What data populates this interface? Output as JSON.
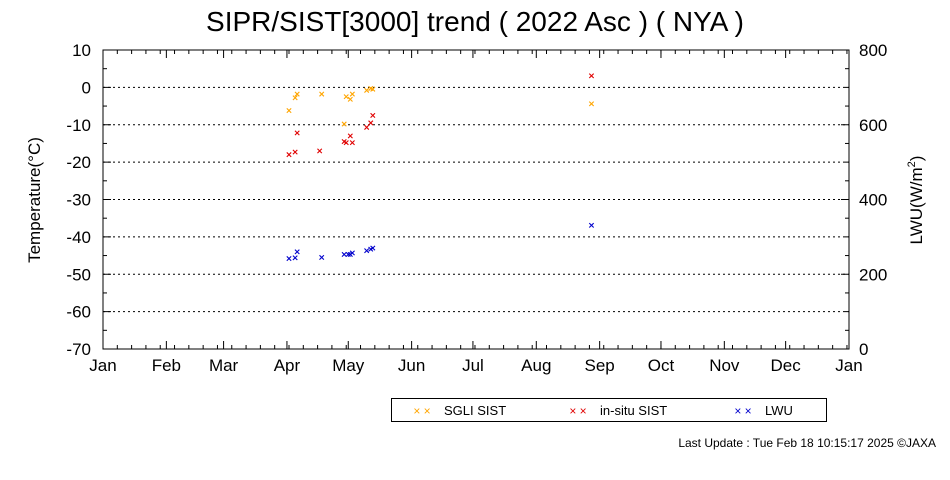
{
  "chart_data": {
    "type": "scatter",
    "title": "SIPR/SIST[3000] trend ( 2022 Asc ) ( NYA )",
    "ylabel": "Temperature(°C)",
    "y2label_main": "LWU(W/m",
    "y2label_sup": "2",
    "y2label_end": ")",
    "ylim": [
      -70,
      10
    ],
    "y2lim": [
      0,
      800
    ],
    "yticks": [
      "10",
      "0",
      "-10",
      "-20",
      "-30",
      "-40",
      "-50",
      "-60",
      "-70"
    ],
    "y2ticks": [
      "800",
      "600",
      "400",
      "200",
      "0"
    ],
    "months": [
      "Jan",
      "Feb",
      "Mar",
      "Apr",
      "May",
      "Jun",
      "Jul",
      "Aug",
      "Sep",
      "Oct",
      "Nov",
      "Dec",
      "Jan"
    ],
    "grid": "dotted horizontal",
    "legend_placement": "bottom-right",
    "series": [
      {
        "name": "SGLI SIST",
        "color": "#ffa500",
        "axis": "left",
        "x": [
          "2022-04-02",
          "2022-04-05",
          "2022-04-06",
          "2022-04-18",
          "2022-04-29",
          "2022-04-30",
          "2022-05-02",
          "2022-05-03",
          "2022-05-10",
          "2022-05-12",
          "2022-05-13",
          "2022-08-28"
        ],
        "y": [
          -6.2,
          -2.8,
          -1.8,
          -1.8,
          -9.8,
          -2.5,
          -3.2,
          -1.8,
          -0.8,
          -0.3,
          -0.5,
          -4.4
        ]
      },
      {
        "name": "in-situ SIST",
        "color": "#e00000",
        "axis": "left",
        "x": [
          "2022-04-02",
          "2022-04-05",
          "2022-04-06",
          "2022-04-17",
          "2022-04-29",
          "2022-04-30",
          "2022-05-02",
          "2022-05-03",
          "2022-05-10",
          "2022-05-12",
          "2022-05-13",
          "2022-08-28"
        ],
        "y": [
          -18.0,
          -17.3,
          -12.2,
          -17.0,
          -14.5,
          -14.8,
          -13.0,
          -14.8,
          -10.7,
          -9.5,
          -7.5,
          3.1
        ]
      },
      {
        "name": "LWU",
        "color": "#0000cc",
        "axis": "right",
        "x": [
          "2022-04-02",
          "2022-04-05",
          "2022-04-06",
          "2022-04-18",
          "2022-04-29",
          "2022-05-01",
          "2022-05-02",
          "2022-05-03",
          "2022-05-10",
          "2022-05-12",
          "2022-05-13",
          "2022-08-28"
        ],
        "y": [
          242,
          244,
          260,
          245,
          253,
          253,
          253,
          257,
          263,
          267,
          270,
          331
        ]
      }
    ]
  },
  "legend": {
    "marker": "× ×",
    "items": [
      "SGLI SIST",
      "in-situ SIST",
      "LWU"
    ]
  },
  "footer": {
    "update": "Last Update : Tue Feb 18 10:15:17 2025  ©JAXA"
  }
}
